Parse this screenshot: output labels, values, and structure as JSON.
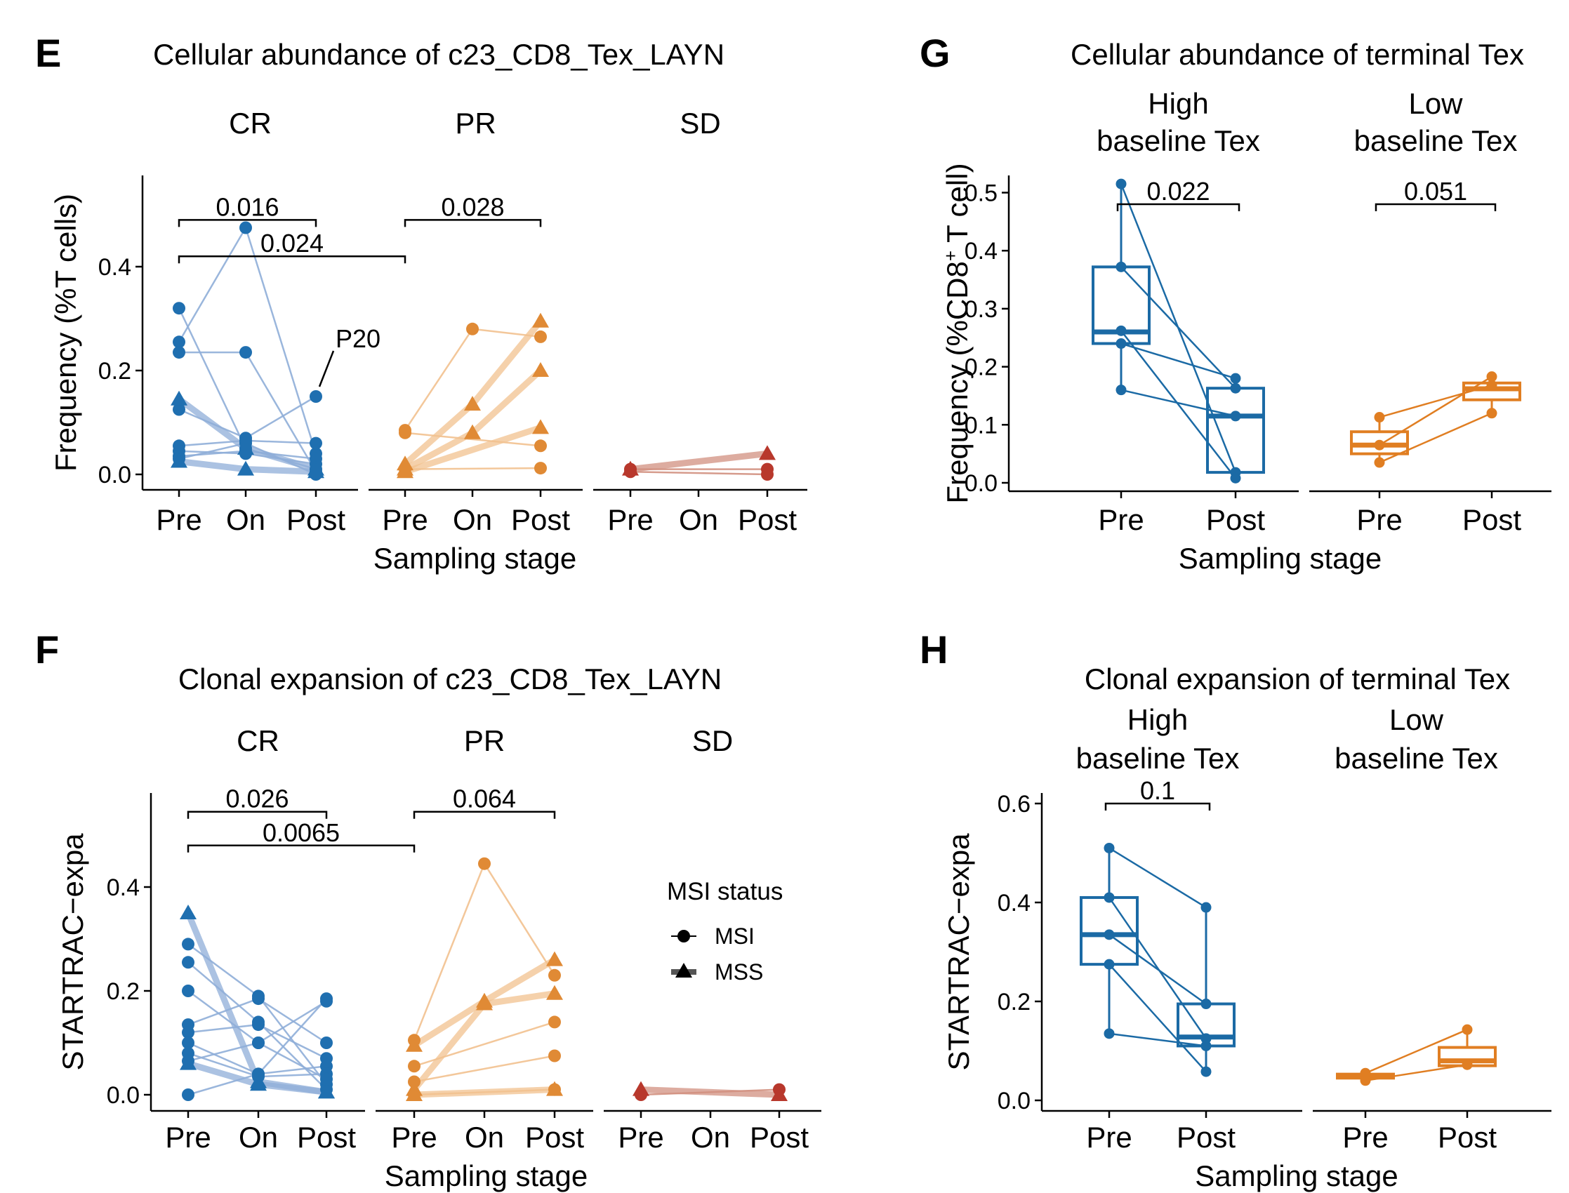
{
  "panels": {
    "E": {
      "letter": "E",
      "title": "Cellular abundance of c23_CD8_Tex_LAYN"
    },
    "F": {
      "letter": "F",
      "title": "Clonal expansion of c23_CD8_Tex_LAYN"
    },
    "G": {
      "letter": "G",
      "title": "Cellular abundance of terminal Tex"
    },
    "H": {
      "letter": "H",
      "title": "Clonal expansion of terminal Tex"
    }
  },
  "legend": {
    "title": "MSI status",
    "items": [
      "MSI",
      "MSS"
    ]
  },
  "colors": {
    "CR": "#1f6fb0",
    "PR": "#e08a35",
    "SD": "#b8382c",
    "CR_line": "#8faed8",
    "PR_line": "#f2c18f",
    "SD_line": "#d29080",
    "G_high": "#1b6aa5",
    "G_low": "#e07e22"
  },
  "chart_data": [
    {
      "panel": "E",
      "type": "line",
      "title": "Cellular abundance of c23_CD8_Tex_LAYN",
      "xlabel": "Sampling stage",
      "ylabel": "Frequency (%T cells)",
      "ylim": [
        0,
        0.55
      ],
      "yticks": [
        "0.0",
        "0.2",
        "0.4"
      ],
      "facets": [
        {
          "name": "CR",
          "x": [
            "Pre",
            "On",
            "Post"
          ],
          "patients": [
            {
              "shape": "circle",
              "width": "thin",
              "values": [
                0.32,
                0.05,
                0.01
              ]
            },
            {
              "shape": "circle",
              "width": "thin",
              "values": [
                0.255,
                0.475,
                0.04
              ]
            },
            {
              "shape": "circle",
              "width": "thin",
              "values": [
                0.235,
                0.235,
                0.005
              ]
            },
            {
              "shape": "circle",
              "width": "thin",
              "values": [
                0.125,
                0.07,
                0.15
              ]
            },
            {
              "shape": "circle",
              "width": "thin",
              "values": [
                0.055,
                0.065,
                0.06
              ]
            },
            {
              "shape": "circle",
              "width": "thin",
              "values": [
                0.045,
                0.04,
                0.02
              ]
            },
            {
              "shape": "circle",
              "width": "thin",
              "values": [
                0.035,
                0.045,
                0.03
              ]
            },
            {
              "shape": "circle",
              "width": "thin",
              "values": [
                0.03,
                0.06,
                0.0
              ]
            },
            {
              "shape": "triangle",
              "width": "thick",
              "values": [
                0.145,
                0.05,
                0.01
              ]
            },
            {
              "shape": "triangle",
              "width": "thick",
              "values": [
                0.025,
                0.01,
                0.005
              ]
            }
          ]
        },
        {
          "name": "PR",
          "x": [
            "Pre",
            "On",
            "Post"
          ],
          "patients": [
            {
              "shape": "circle",
              "width": "thin",
              "values": [
                0.085,
                0.28,
                0.265
              ]
            },
            {
              "shape": "circle",
              "width": "thin",
              "values": [
                0.08,
                null,
                0.055
              ]
            },
            {
              "shape": "circle",
              "width": "thin",
              "values": [
                0.01,
                null,
                0.012
              ]
            },
            {
              "shape": "triangle",
              "width": "thick",
              "values": [
                0.02,
                0.135,
                0.295
              ]
            },
            {
              "shape": "triangle",
              "width": "thick",
              "values": [
                0.01,
                0.08,
                0.2
              ]
            },
            {
              "shape": "triangle",
              "width": "thick",
              "values": [
                0.005,
                null,
                0.09
              ]
            }
          ]
        },
        {
          "name": "SD",
          "x": [
            "Pre",
            "On",
            "Post"
          ],
          "patients": [
            {
              "shape": "circle",
              "width": "thin",
              "values": [
                0.01,
                null,
                0.01
              ]
            },
            {
              "shape": "circle",
              "width": "thin",
              "values": [
                0.005,
                null,
                0.0
              ]
            },
            {
              "shape": "triangle",
              "width": "thick",
              "values": [
                0.01,
                null,
                0.04
              ]
            }
          ]
        }
      ],
      "annotations": [
        {
          "text": "P20",
          "facet": "CR",
          "x": "Post",
          "y": 0.15
        }
      ],
      "pvalues": [
        {
          "label": "0.016",
          "from": [
            "CR",
            "Pre"
          ],
          "to": [
            "CR",
            "Post"
          ],
          "y": 0.49
        },
        {
          "label": "0.024",
          "from": [
            "CR",
            "Pre"
          ],
          "to": [
            "PR",
            "Pre"
          ],
          "y": 0.42
        },
        {
          "label": "0.028",
          "from": [
            "PR",
            "Pre"
          ],
          "to": [
            "PR",
            "Post"
          ],
          "y": 0.49
        }
      ]
    },
    {
      "panel": "F",
      "type": "line",
      "title": "Clonal expansion of c23_CD8_Tex_LAYN",
      "xlabel": "Sampling stage",
      "ylabel": "STARTRAC−expa",
      "ylim": [
        0,
        0.55
      ],
      "yticks": [
        "0.0",
        "0.2",
        "0.4"
      ],
      "facets": [
        {
          "name": "CR",
          "x": [
            "Pre",
            "On",
            "Post"
          ],
          "patients": [
            {
              "shape": "circle",
              "width": "thin",
              "values": [
                0.29,
                0.19,
                0.02
              ]
            },
            {
              "shape": "circle",
              "width": "thin",
              "values": [
                0.255,
                0.14,
                0.01
              ]
            },
            {
              "shape": "circle",
              "width": "thin",
              "values": [
                0.2,
                0.1,
                0.18
              ]
            },
            {
              "shape": "circle",
              "width": "thin",
              "values": [
                0.135,
                0.185,
                0.1
              ]
            },
            {
              "shape": "circle",
              "width": "thin",
              "values": [
                0.12,
                0.135,
                0.07
              ]
            },
            {
              "shape": "circle",
              "width": "thin",
              "values": [
                0.1,
                0.04,
                0.055
              ]
            },
            {
              "shape": "circle",
              "width": "thin",
              "values": [
                0.08,
                0.035,
                0.04
              ]
            },
            {
              "shape": "circle",
              "width": "thin",
              "values": [
                0.065,
                0.1,
                0.03
              ]
            },
            {
              "shape": "circle",
              "width": "thin",
              "values": [
                0.0,
                0.04,
                0.185
              ]
            },
            {
              "shape": "triangle",
              "width": "thick",
              "values": [
                0.35,
                0.025,
                0.005
              ]
            },
            {
              "shape": "triangle",
              "width": "thick",
              "values": [
                0.06,
                0.02,
                0.005
              ]
            }
          ]
        },
        {
          "name": "PR",
          "x": [
            "Pre",
            "On",
            "Post"
          ],
          "patients": [
            {
              "shape": "circle",
              "width": "thin",
              "values": [
                0.105,
                0.445,
                0.23
              ]
            },
            {
              "shape": "circle",
              "width": "thin",
              "values": [
                0.055,
                null,
                0.14
              ]
            },
            {
              "shape": "circle",
              "width": "thin",
              "values": [
                0.025,
                null,
                0.075
              ]
            },
            {
              "shape": "circle",
              "width": "thin",
              "values": [
                0.0,
                null,
                0.01
              ]
            },
            {
              "shape": "triangle",
              "width": "thick",
              "values": [
                0.095,
                0.18,
                0.26
              ]
            },
            {
              "shape": "triangle",
              "width": "thick",
              "values": [
                0.01,
                0.175,
                0.195
              ]
            },
            {
              "shape": "triangle",
              "width": "thick",
              "values": [
                0.0,
                null,
                0.01
              ]
            }
          ]
        },
        {
          "name": "SD",
          "x": [
            "Pre",
            "On",
            "Post"
          ],
          "patients": [
            {
              "shape": "circle",
              "width": "thin",
              "values": [
                0.0,
                null,
                0.01
              ]
            },
            {
              "shape": "triangle",
              "width": "thick",
              "values": [
                0.01,
                null,
                0.0
              ]
            }
          ]
        }
      ],
      "pvalues": [
        {
          "label": "0.026",
          "from": [
            "CR",
            "Pre"
          ],
          "to": [
            "CR",
            "Post"
          ],
          "y": 0.545
        },
        {
          "label": "0.0065",
          "from": [
            "CR",
            "Pre"
          ],
          "to": [
            "PR",
            "Pre"
          ],
          "y": 0.48
        },
        {
          "label": "0.064",
          "from": [
            "PR",
            "Pre"
          ],
          "to": [
            "PR",
            "Post"
          ],
          "y": 0.545
        }
      ]
    },
    {
      "panel": "G",
      "type": "box",
      "title": "Cellular abundance of terminal Tex",
      "xlabel": "Sampling stage",
      "ylabel_main": "Frequency (%CD8",
      "ylabel_sup": "+",
      "ylabel_tail": " T cell)",
      "ylim": [
        0,
        0.52
      ],
      "yticks": [
        "0.0",
        "0.1",
        "0.2",
        "0.3",
        "0.4",
        "0.5"
      ],
      "facets": [
        {
          "name": "High\nbaseline Tex",
          "x": [
            "Pre",
            "Post"
          ],
          "boxes": [
            {
              "q1": 0.24,
              "median": 0.26,
              "q3": 0.372,
              "min": 0.16,
              "max": 0.515
            },
            {
              "q1": 0.018,
              "median": 0.115,
              "q3": 0.163,
              "min": 0.008,
              "max": 0.18
            }
          ],
          "pairs": [
            [
              0.515,
              0.018
            ],
            [
              0.372,
              0.163
            ],
            [
              0.262,
              0.008
            ],
            [
              0.24,
              0.18
            ],
            [
              0.16,
              0.115
            ]
          ]
        },
        {
          "name": "Low\nbaseline Tex",
          "x": [
            "Pre",
            "Post"
          ],
          "boxes": [
            {
              "q1": 0.05,
              "median": 0.065,
              "q3": 0.088,
              "min": 0.035,
              "max": 0.113
            },
            {
              "q1": 0.143,
              "median": 0.162,
              "q3": 0.172,
              "min": 0.12,
              "max": 0.183
            }
          ],
          "pairs": [
            [
              0.113,
              0.168
            ],
            [
              0.065,
              0.183
            ],
            [
              0.035,
              0.12
            ]
          ]
        }
      ],
      "pvalues": [
        {
          "label": "0.022",
          "facet": 0,
          "y": 0.48
        },
        {
          "label": "0.051",
          "facet": 1,
          "y": 0.48
        }
      ]
    },
    {
      "panel": "H",
      "type": "box",
      "title": "Clonal expansion of terminal Tex",
      "xlabel": "Sampling stage",
      "ylabel": "STARTRAC−expa",
      "ylim": [
        0,
        0.62
      ],
      "yticks": [
        "0.0",
        "0.2",
        "0.4",
        "0.6"
      ],
      "facets": [
        {
          "name": "High\nbaseline Tex",
          "x": [
            "Pre",
            "Post"
          ],
          "boxes": [
            {
              "q1": 0.275,
              "median": 0.335,
              "q3": 0.41,
              "min": 0.135,
              "max": 0.51
            },
            {
              "q1": 0.11,
              "median": 0.128,
              "q3": 0.195,
              "min": 0.058,
              "max": 0.39
            }
          ],
          "pairs": [
            [
              0.51,
              0.39
            ],
            [
              0.41,
              0.125
            ],
            [
              0.335,
              0.195
            ],
            [
              0.275,
              0.058
            ],
            [
              0.135,
              0.11
            ]
          ]
        },
        {
          "name": "Low\nbaseline Tex",
          "x": [
            "Pre",
            "Post"
          ],
          "boxes": [
            {
              "q1": 0.045,
              "median": 0.05,
              "q3": 0.053,
              "min": 0.04,
              "max": 0.055
            },
            {
              "q1": 0.07,
              "median": 0.08,
              "q3": 0.107,
              "min": 0.07,
              "max": 0.143
            }
          ],
          "pairs": [
            [
              0.055,
              0.143
            ],
            [
              0.04,
              0.072
            ]
          ]
        }
      ],
      "pvalues": [
        {
          "label": "0.1",
          "facet": 0,
          "y": 0.6
        }
      ]
    }
  ]
}
